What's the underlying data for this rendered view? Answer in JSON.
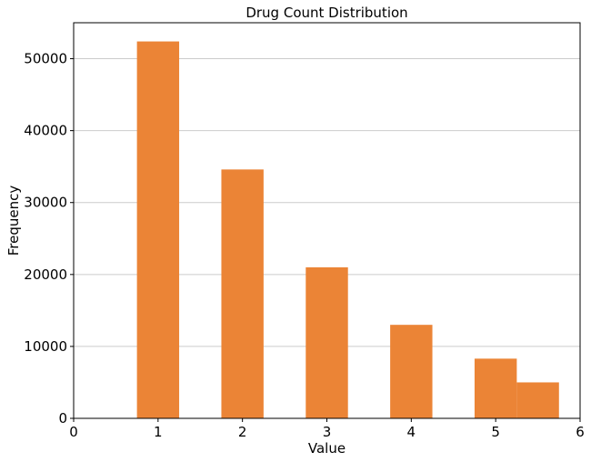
{
  "chart_data": {
    "type": "bar",
    "title": "Drug Count Distribution",
    "xlabel": "Value",
    "ylabel": "Frequency",
    "bars": [
      {
        "x_start": 0.75,
        "x_end": 1.25,
        "value": 52400
      },
      {
        "x_start": 1.75,
        "x_end": 2.25,
        "value": 34600
      },
      {
        "x_start": 2.75,
        "x_end": 3.25,
        "value": 21000
      },
      {
        "x_start": 3.75,
        "x_end": 4.25,
        "value": 13000
      },
      {
        "x_start": 4.75,
        "x_end": 5.25,
        "value": 8300
      },
      {
        "x_start": 5.25,
        "x_end": 5.75,
        "value": 5000
      }
    ],
    "xlim": [
      0,
      6
    ],
    "ylim": [
      0,
      55000
    ],
    "xticks": [
      0,
      1,
      2,
      3,
      4,
      5,
      6
    ],
    "yticks": [
      0,
      10000,
      20000,
      30000,
      40000,
      50000
    ],
    "grid": "horizontal",
    "bar_color": "#eb8436",
    "grid_color": "#cccccc"
  }
}
